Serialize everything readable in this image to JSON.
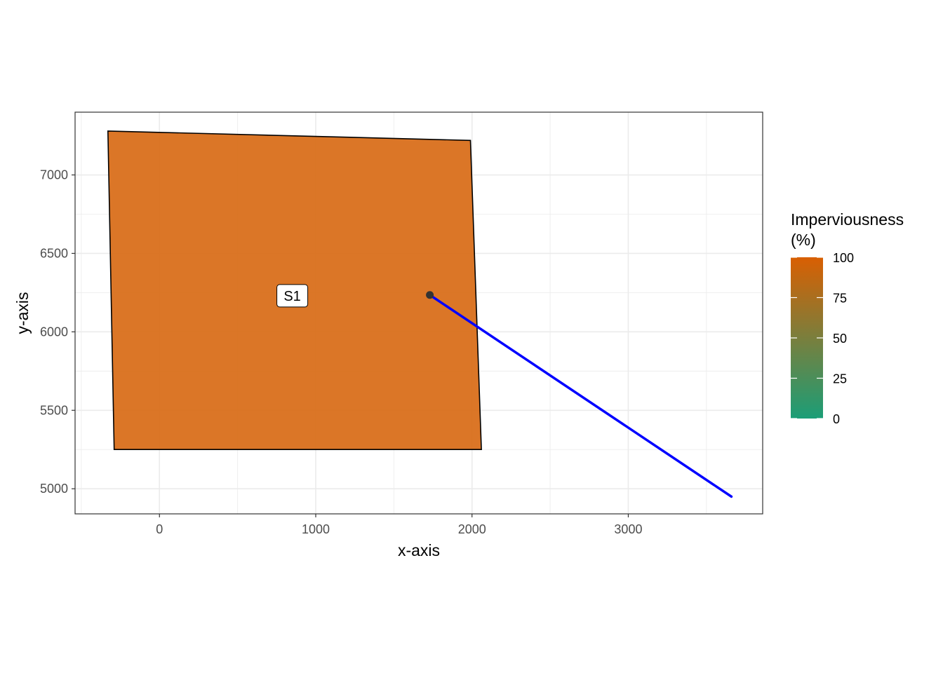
{
  "chart_data": {
    "type": "polygon-map",
    "title": "",
    "xlabel": "x-axis",
    "ylabel": "y-axis",
    "xlim": [
      -540,
      3860
    ],
    "ylim": [
      4840,
      7400
    ],
    "x_ticks": [
      0,
      1000,
      2000,
      3000
    ],
    "y_ticks": [
      5000,
      5500,
      6000,
      6500,
      7000
    ],
    "grid": true,
    "subcatchments": [
      {
        "label": "S1",
        "imperviousness": 90,
        "polygon": [
          [
            -330,
            7280
          ],
          [
            1990,
            7220
          ],
          [
            2060,
            5250
          ],
          [
            -290,
            5250
          ]
        ],
        "label_position": [
          850,
          6230
        ],
        "outlet_point": [
          1730,
          6235
        ]
      }
    ],
    "links": [
      {
        "from": [
          1730,
          6235
        ],
        "to": [
          3660,
          4950
        ],
        "color": "#0000ff"
      }
    ],
    "legend": {
      "title_lines": [
        "Imperviousness",
        "(%)"
      ],
      "position": "right",
      "ticks": [
        0,
        25,
        50,
        75,
        100
      ],
      "tick_labels": [
        "0",
        "25",
        "50",
        "75",
        "100"
      ],
      "color_low": "#1b9e77",
      "color_high": "#d95f02"
    },
    "colors": {
      "polygon_fill": "#d96f1b",
      "link": "#0000ff",
      "outlet_point": "#333333",
      "grid": "#ebebeb",
      "panel_border": "#333333"
    }
  }
}
